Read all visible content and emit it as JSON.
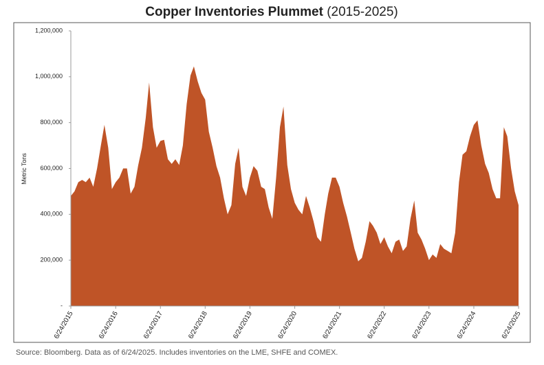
{
  "chart_data": {
    "type": "area",
    "title": "Copper Inventories Plummet",
    "subtitle": "(2015-2025)",
    "ylabel": "Metric Tons",
    "source": "Source: Bloomberg. Data as of 6/24/2025. Includes inventories on the LME, SHFE and COMEX.",
    "color": "#bf5427",
    "ylim": [
      0,
      1200000
    ],
    "yticks": [
      {
        "value": 0,
        "label": "-"
      },
      {
        "value": 200000,
        "label": "200,000"
      },
      {
        "value": 400000,
        "label": "400,000"
      },
      {
        "value": 600000,
        "label": "600,000"
      },
      {
        "value": 800000,
        "label": "800,000"
      },
      {
        "value": 1000000,
        "label": "1,000,000"
      },
      {
        "value": 1200000,
        "label": "1,200,000"
      }
    ],
    "xlim": [
      "6/24/2015",
      "6/24/2025"
    ],
    "xticks": [
      "6/24/2015",
      "6/24/2016",
      "6/24/2017",
      "6/24/2018",
      "6/24/2019",
      "6/24/2020",
      "6/24/2021",
      "6/24/2022",
      "6/24/2023",
      "6/24/2024",
      "6/24/2025"
    ],
    "x": [
      "6/24/2015",
      "7/24/2015",
      "8/24/2015",
      "9/24/2015",
      "10/24/2015",
      "11/24/2015",
      "12/24/2015",
      "1/24/2016",
      "2/24/2016",
      "3/24/2016",
      "4/24/2016",
      "5/24/2016",
      "6/24/2016",
      "7/24/2016",
      "8/24/2016",
      "9/24/2016",
      "10/24/2016",
      "11/24/2016",
      "12/24/2016",
      "1/24/2017",
      "2/24/2017",
      "3/24/2017",
      "4/24/2017",
      "5/24/2017",
      "6/24/2017",
      "7/24/2017",
      "8/24/2017",
      "9/24/2017",
      "10/24/2017",
      "11/24/2017",
      "12/24/2017",
      "1/24/2018",
      "2/24/2018",
      "3/24/2018",
      "4/24/2018",
      "5/24/2018",
      "6/24/2018",
      "7/24/2018",
      "8/24/2018",
      "9/24/2018",
      "10/24/2018",
      "11/24/2018",
      "12/24/2018",
      "1/24/2019",
      "2/24/2019",
      "3/24/2019",
      "4/24/2019",
      "5/24/2019",
      "6/24/2019",
      "7/24/2019",
      "8/24/2019",
      "9/24/2019",
      "10/24/2019",
      "11/24/2019",
      "12/24/2019",
      "1/24/2020",
      "2/24/2020",
      "3/24/2020",
      "4/24/2020",
      "5/24/2020",
      "6/24/2020",
      "7/24/2020",
      "8/24/2020",
      "9/24/2020",
      "10/24/2020",
      "11/24/2020",
      "12/24/2020",
      "1/24/2021",
      "2/24/2021",
      "3/24/2021",
      "4/24/2021",
      "5/24/2021",
      "6/24/2021",
      "7/24/2021",
      "8/24/2021",
      "9/24/2021",
      "10/24/2021",
      "11/24/2021",
      "12/24/2021",
      "1/24/2022",
      "2/24/2022",
      "3/24/2022",
      "4/24/2022",
      "5/24/2022",
      "6/24/2022",
      "7/24/2022",
      "8/24/2022",
      "9/24/2022",
      "10/24/2022",
      "11/24/2022",
      "12/24/2022",
      "1/24/2023",
      "2/24/2023",
      "3/24/2023",
      "4/24/2023",
      "5/24/2023",
      "6/24/2023",
      "7/24/2023",
      "8/24/2023",
      "9/24/2023",
      "10/24/2023",
      "11/24/2023",
      "12/24/2023",
      "1/24/2024",
      "2/24/2024",
      "3/24/2024",
      "4/24/2024",
      "5/24/2024",
      "6/24/2024",
      "7/24/2024",
      "8/24/2024",
      "9/24/2024",
      "10/24/2024",
      "11/24/2024",
      "12/24/2024",
      "1/24/2025",
      "2/24/2025",
      "3/24/2025",
      "4/24/2025",
      "5/24/2025",
      "6/24/2025"
    ],
    "values": [
      480000,
      500000,
      540000,
      550000,
      540000,
      560000,
      520000,
      600000,
      700000,
      790000,
      690000,
      510000,
      540000,
      560000,
      600000,
      600000,
      490000,
      520000,
      612000,
      690000,
      820000,
      975000,
      780000,
      690000,
      720000,
      725000,
      640000,
      620000,
      640000,
      615000,
      700000,
      880000,
      1005000,
      1045000,
      980000,
      930000,
      900000,
      760000,
      690000,
      610000,
      560000,
      470000,
      400000,
      440000,
      620000,
      690000,
      520000,
      480000,
      560000,
      610000,
      590000,
      520000,
      510000,
      430000,
      380000,
      560000,
      780000,
      870000,
      615000,
      510000,
      450000,
      420000,
      400000,
      480000,
      430000,
      370000,
      300000,
      280000,
      400000,
      490000,
      560000,
      560000,
      520000,
      450000,
      390000,
      320000,
      250000,
      195000,
      210000,
      280000,
      370000,
      350000,
      320000,
      270000,
      300000,
      260000,
      230000,
      280000,
      290000,
      240000,
      260000,
      380000,
      460000,
      320000,
      290000,
      250000,
      200000,
      225000,
      210000,
      270000,
      250000,
      240000,
      230000,
      320000,
      540000,
      660000,
      675000,
      740000,
      790000,
      810000,
      700000,
      620000,
      580000,
      510000,
      470000,
      470000,
      780000,
      740000,
      600000,
      500000,
      440000
    ]
  }
}
